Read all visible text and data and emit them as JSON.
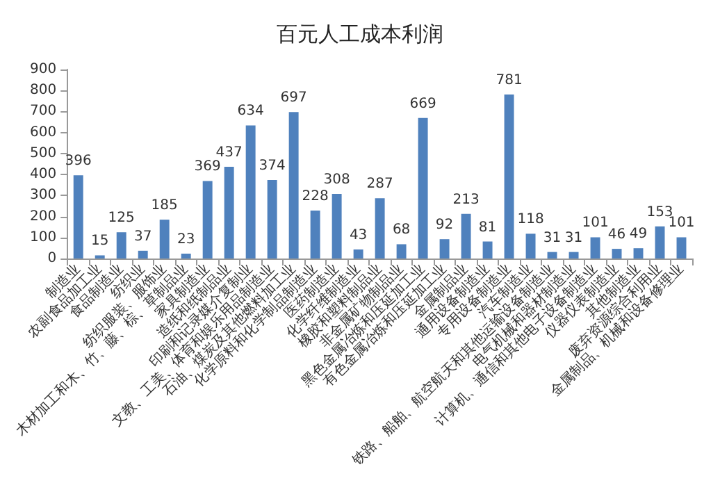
{
  "chart_data": {
    "type": "bar",
    "title": "百元人工成本利润",
    "categories": [
      "制造业",
      "农副食品加工业",
      "食品制造业",
      "纺织业",
      "纺织服装、服饰业",
      "木材加工和木、竹、藤、棕、草制品业",
      "家具制造业",
      "造纸和纸制品业",
      "印刷和记录媒介复制业",
      "文教、工美、体育和娱乐用品制造业",
      "石油、煤炭及其他燃料加工业",
      "化学原料和化学制品制造业",
      "医药制造业",
      "化学纤维制造业",
      "橡胶和塑料制品业",
      "非金属矿物制品业",
      "黑色金属冶炼和压延加工业",
      "有色金属冶炼和压延加工业",
      "金属制品业",
      "通用设备制造业",
      "专用设备制造业",
      "汽车制造业",
      "铁路、船舶、航空航天和其他运输设备制造业",
      "电气机械和器材制造业",
      "计算机、通信和其他电子设备制造业",
      "仪器仪表制造业",
      "其他制造业",
      "废弃资源综合利用业",
      "金属制品、机械和设备修理业"
    ],
    "values": [
      396,
      15,
      125,
      37,
      185,
      23,
      369,
      437,
      634,
      374,
      697,
      228,
      308,
      43,
      287,
      68,
      669,
      92,
      213,
      81,
      781,
      118,
      31,
      31,
      101,
      46,
      49,
      153,
      101
    ],
    "color": "#4f81bd",
    "ylim": [
      0,
      900
    ],
    "yticks": [
      0,
      100,
      200,
      300,
      400,
      500,
      600,
      700,
      800,
      900
    ],
    "grid": false,
    "data_labels": true
  }
}
